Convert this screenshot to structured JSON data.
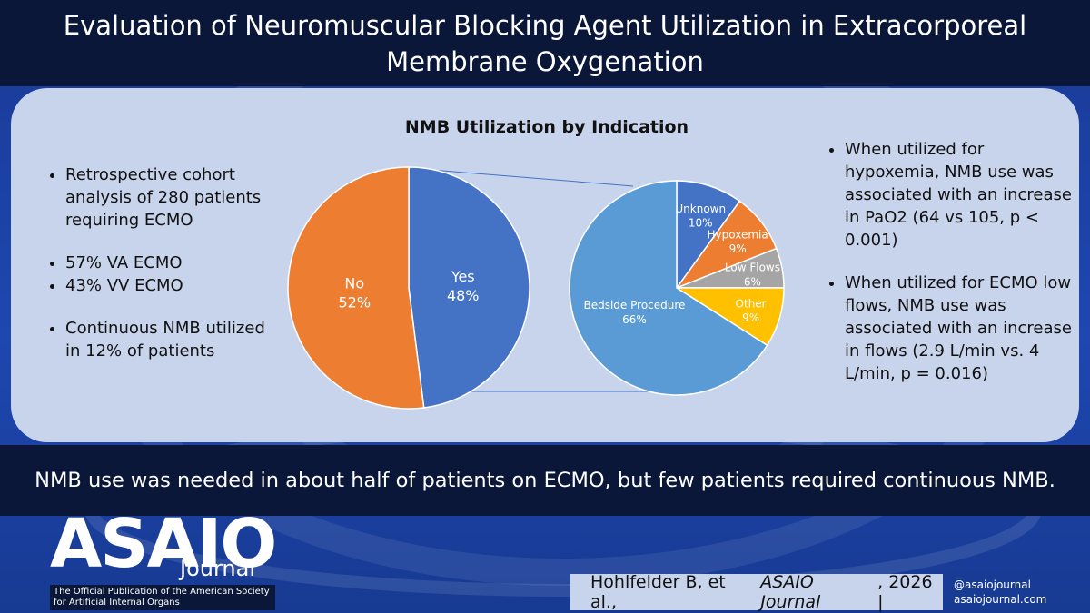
{
  "header": {
    "title": "Evaluation of Neuromuscular Blocking Agent Utilization in Extracorporeal Membrane Oxygenation"
  },
  "left_bullets": [
    [
      "Retrospective cohort analysis of 280 patients requiring ECMO"
    ],
    [
      "57% VA ECMO",
      "43% VV ECMO"
    ],
    [
      "Continuous NMB utilized in 12% of patients"
    ]
  ],
  "right_bullets": [
    "When utilized for hypoxemia, NMB use was associated with an increase in PaO2 (64 vs 105, p < 0.001)",
    "When utilized for ECMO low flows, NMB use was associated with an increase in flows (2.9 L/min vs. 4 L/min, p = 0.016)"
  ],
  "conclusion": "NMB use was needed in about half of patients on ECMO, but few patients required continuous NMB.",
  "logo": {
    "name": "ASAIO",
    "sub": "Journal",
    "tagline": "The Official Publication of the American Society for Artificial Internal Organs"
  },
  "citation": {
    "authors": "Hohlfelder B, et al.,",
    "journal": "ASAIO Journal",
    "year": ", 2026 |",
    "handle": "@asaiojournal",
    "site": "asaiojournal.com"
  },
  "chart_data": [
    {
      "type": "pie",
      "title": "NMB Utilization by Indication",
      "categories": [
        "Yes",
        "No"
      ],
      "values": [
        48,
        52
      ],
      "value_labels": [
        "48%",
        "52%"
      ],
      "colors": [
        "#4472c4",
        "#ed7d31"
      ]
    },
    {
      "type": "pie",
      "categories": [
        "Unknown",
        "Hypoxemia",
        "Low Flows",
        "Other",
        "Bedside Procedure"
      ],
      "values": [
        10,
        9,
        6,
        9,
        66
      ],
      "value_labels": [
        "10%",
        "9%",
        "6%",
        "9%",
        "66%"
      ],
      "colors": [
        "#4472c4",
        "#ed7d31",
        "#a5a5a5",
        "#ffc000",
        "#5b9bd5"
      ]
    }
  ]
}
